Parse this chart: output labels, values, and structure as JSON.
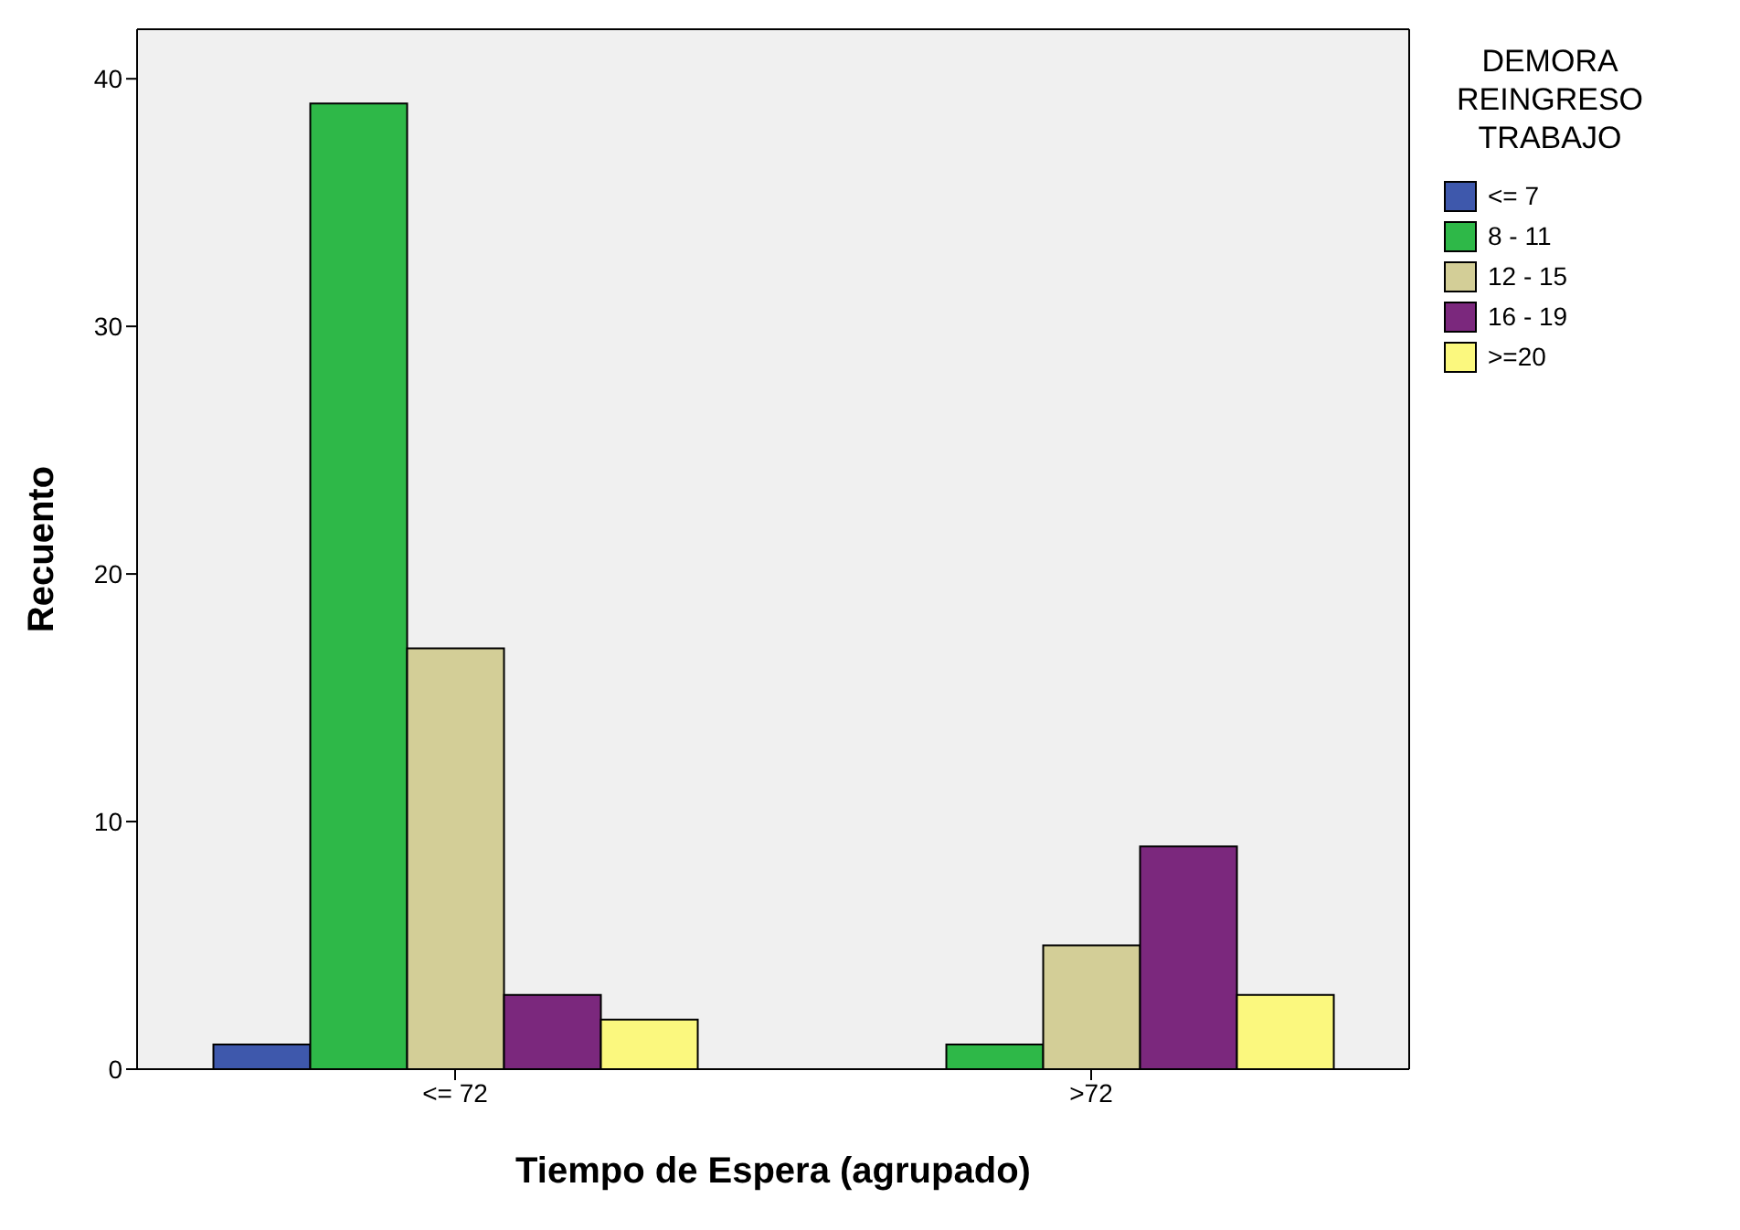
{
  "chart_data": {
    "type": "bar",
    "xlabel": "Tiempo de Espera (agrupado)",
    "ylabel": "Recuento",
    "legend_title": "DEMORA REINGRESO TRABAJO",
    "categories": [
      "<= 72",
      ">72"
    ],
    "series": [
      {
        "name": "<= 7",
        "color": "#3e58ac",
        "values": [
          1,
          null
        ]
      },
      {
        "name": "8 - 11",
        "color": "#2eb848",
        "values": [
          39,
          1
        ]
      },
      {
        "name": "12 - 15",
        "color": "#d3ce97",
        "values": [
          17,
          5
        ]
      },
      {
        "name": "16 - 19",
        "color": "#7b287d",
        "values": [
          3,
          9
        ]
      },
      {
        "name": ">=20",
        "color": "#fbf87e",
        "values": [
          2,
          3
        ]
      }
    ],
    "ylim": [
      0,
      42
    ],
    "yticks": [
      0,
      10,
      20,
      30,
      40
    ],
    "legend": "top right"
  }
}
